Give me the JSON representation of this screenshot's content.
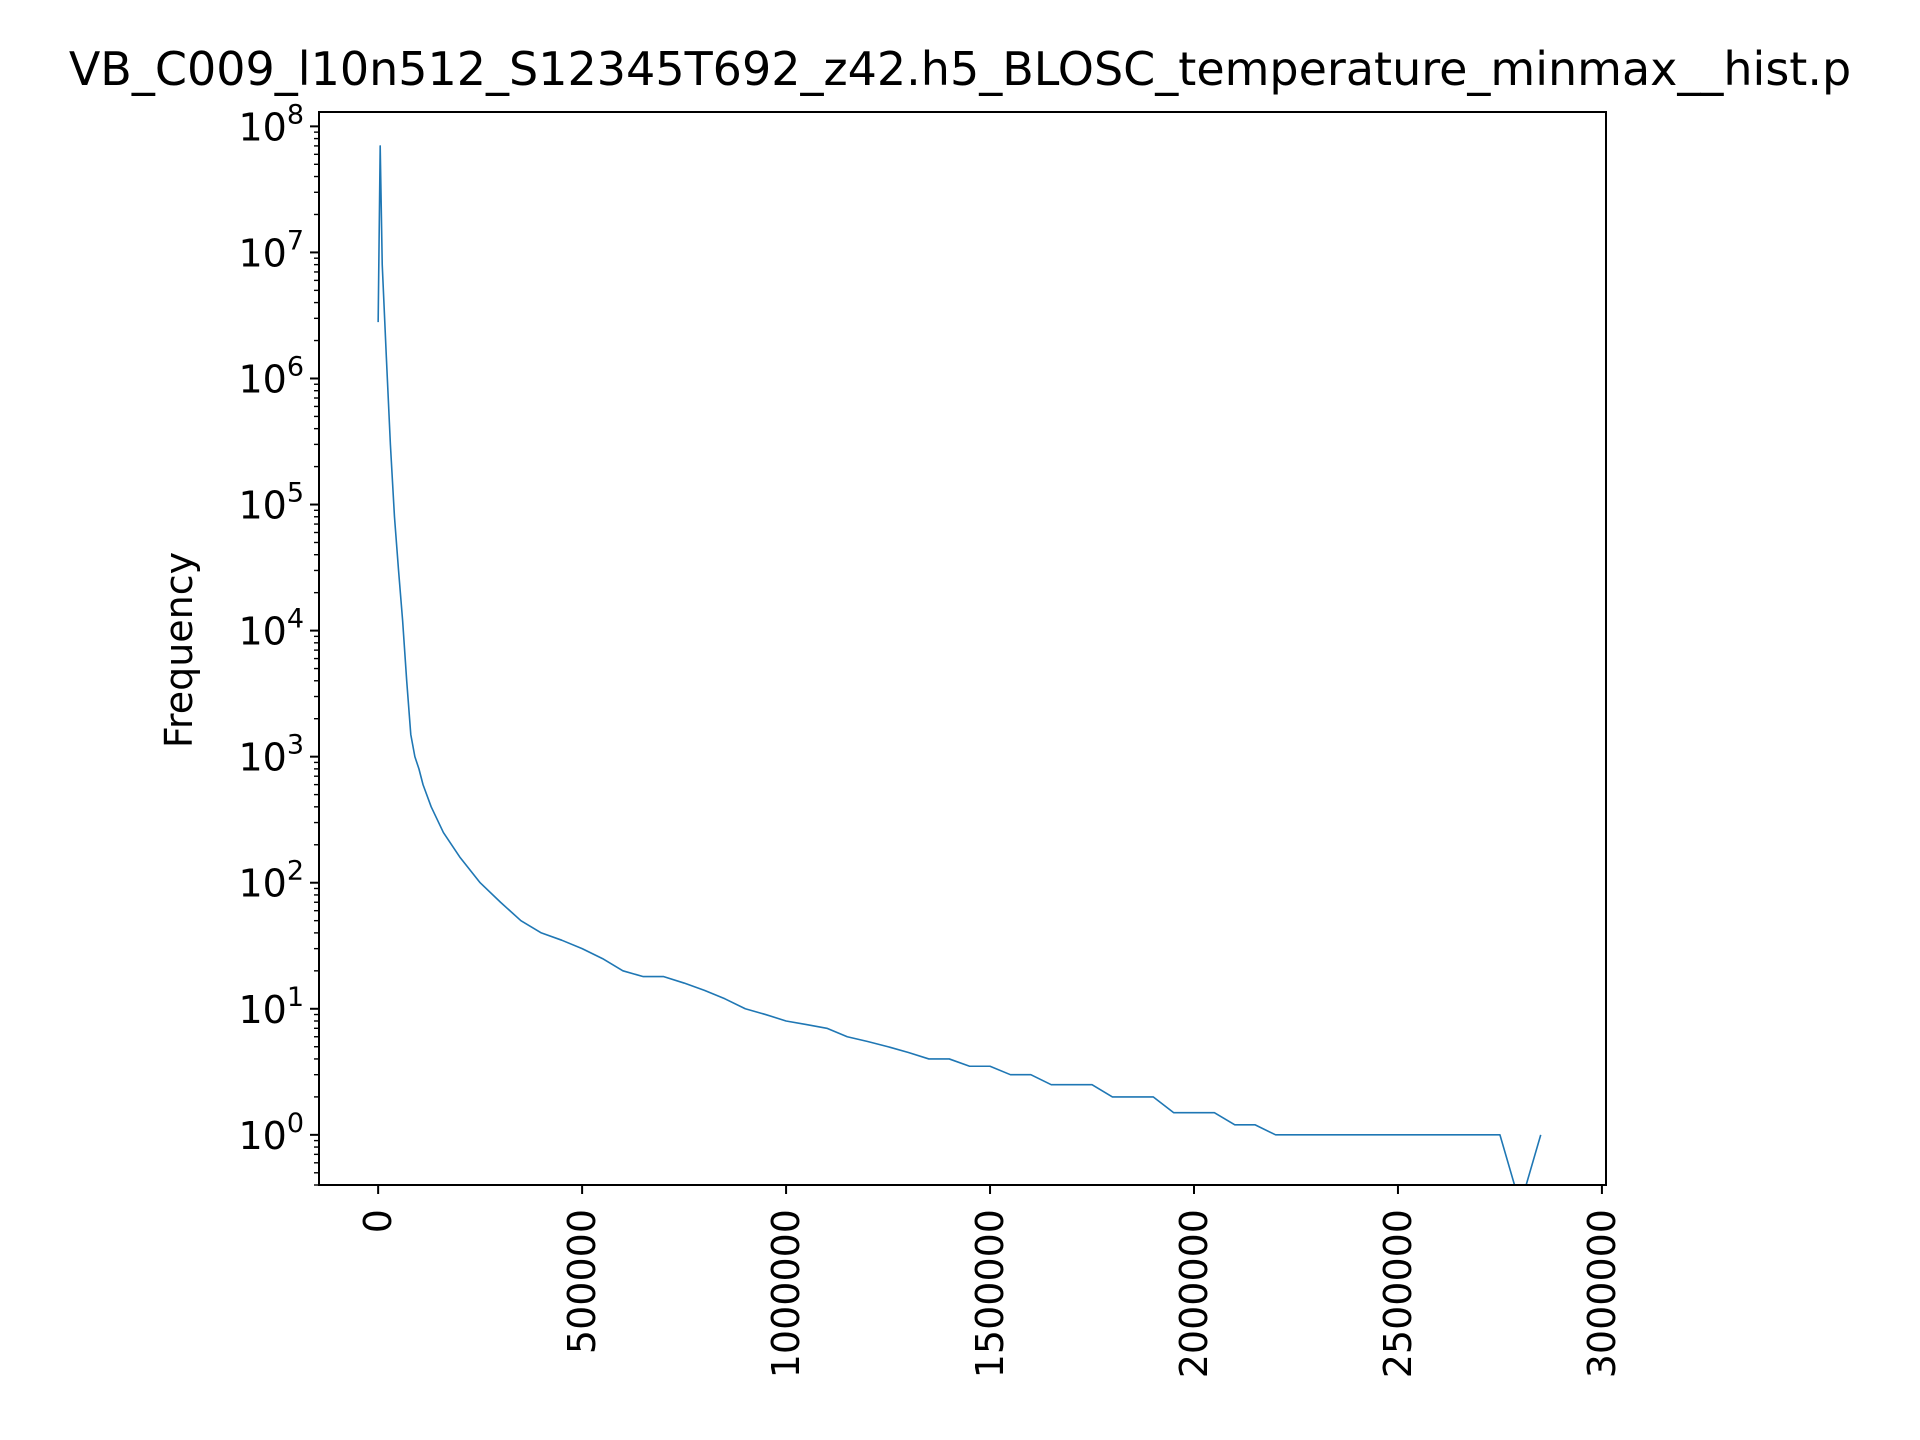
{
  "chart_data": {
    "type": "line",
    "title": "VB_C009_l10n512_S12345T692_z42.h5_BLOSC_temperature_minmax__hist.p",
    "xlabel": "",
    "ylabel": "Frequency",
    "xlim": [
      -145000,
      3010000
    ],
    "ylim": [
      0.4,
      130000000
    ],
    "y_scale": "log",
    "grid": false,
    "legend": "none",
    "series_color": "#1f77b4",
    "x_ticks": [
      {
        "value": 0,
        "label": "0"
      },
      {
        "value": 500000,
        "label": "500000"
      },
      {
        "value": 1000000,
        "label": "1000000"
      },
      {
        "value": 1500000,
        "label": "1500000"
      },
      {
        "value": 2000000,
        "label": "2000000"
      },
      {
        "value": 2500000,
        "label": "2500000"
      },
      {
        "value": 3000000,
        "label": "3000000"
      }
    ],
    "y_ticks": [
      {
        "value": 1,
        "base": "10",
        "exp": "0"
      },
      {
        "value": 10,
        "base": "10",
        "exp": "1"
      },
      {
        "value": 100,
        "base": "10",
        "exp": "2"
      },
      {
        "value": 1000,
        "base": "10",
        "exp": "3"
      },
      {
        "value": 10000,
        "base": "10",
        "exp": "4"
      },
      {
        "value": 100000,
        "base": "10",
        "exp": "5"
      },
      {
        "value": 1000000,
        "base": "10",
        "exp": "6"
      },
      {
        "value": 10000000,
        "base": "10",
        "exp": "7"
      },
      {
        "value": 100000000,
        "base": "10",
        "exp": "8"
      }
    ],
    "series": [
      {
        "x": [
          0,
          5000,
          10000,
          20000,
          30000,
          40000,
          50000,
          60000,
          70000,
          80000,
          90000,
          100000,
          110000,
          130000,
          160000,
          200000,
          250000,
          300000,
          350000,
          400000,
          450000,
          500000,
          550000,
          600000,
          650000,
          700000,
          750000,
          800000,
          850000,
          900000,
          950000,
          1000000,
          1050000,
          1100000,
          1150000,
          1200000,
          1250000,
          1300000,
          1350000,
          1400000,
          1450000,
          1500000,
          1550000,
          1600000,
          1650000,
          1700000,
          1750000,
          1800000,
          1850000,
          1900000,
          1950000,
          2000000,
          2050000,
          2100000,
          2150000,
          2200000,
          2250000,
          2300000,
          2350000,
          2400000,
          2450000,
          2500000,
          2550000,
          2600000,
          2650000,
          2700000,
          2750000,
          2800000,
          2850000
        ],
        "y": [
          2800000,
          70000000,
          8000000,
          1500000,
          300000,
          80000,
          30000,
          12000,
          4000,
          1500,
          1000,
          800,
          600,
          400,
          250,
          160,
          100,
          70,
          50,
          40,
          35,
          30,
          25,
          20,
          18,
          18,
          16,
          14,
          12,
          10,
          9,
          8,
          7.5,
          7,
          6,
          5.5,
          5,
          4.5,
          4,
          4,
          3.5,
          3.5,
          3,
          3,
          2.5,
          2.5,
          2.5,
          2,
          2,
          2,
          1.5,
          1.5,
          1.5,
          1.2,
          1.2,
          1,
          1,
          1,
          1,
          1,
          1,
          1,
          1,
          1,
          1,
          1,
          1,
          0,
          1
        ]
      }
    ]
  }
}
